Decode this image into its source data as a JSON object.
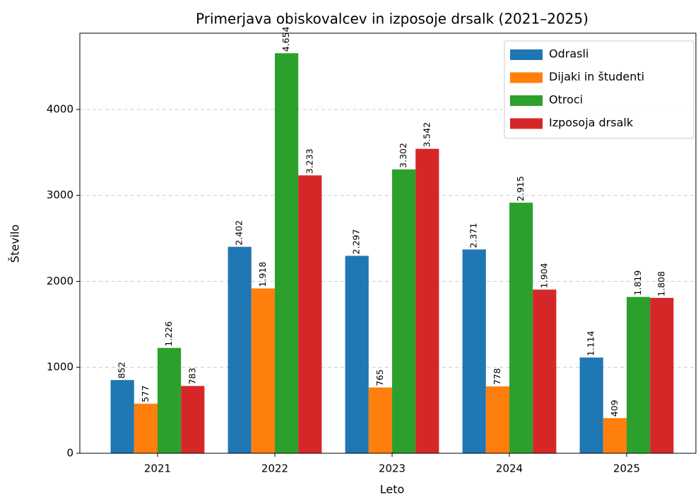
{
  "chart_data": {
    "type": "bar",
    "title": "Primerjava obiskovalcev in izposoje drsalk (2021–2025)",
    "xlabel": "Leto",
    "ylabel": "Število",
    "categories": [
      "2021",
      "2022",
      "2023",
      "2024",
      "2025"
    ],
    "series": [
      {
        "name": "Odrasli",
        "color": "#1f77b4",
        "values": [
          852,
          2402,
          2297,
          2371,
          1114
        ],
        "value_labels": [
          "852",
          "2.402",
          "2.297",
          "2.371",
          "1.114"
        ]
      },
      {
        "name": "Dijaki in študenti",
        "color": "#ff7f0e",
        "values": [
          577,
          1918,
          765,
          778,
          409
        ],
        "value_labels": [
          "577",
          "1.918",
          "765",
          "778",
          "409"
        ]
      },
      {
        "name": "Otroci",
        "color": "#2ca02c",
        "values": [
          1226,
          4654,
          3302,
          2915,
          1819
        ],
        "value_labels": [
          "1.226",
          "4.654",
          "3.302",
          "2.915",
          "1.819"
        ]
      },
      {
        "name": "Izposoja drsalk",
        "color": "#d62728",
        "values": [
          783,
          3233,
          3542,
          1904,
          1808
        ],
        "value_labels": [
          "783",
          "3.233",
          "3.542",
          "1.904",
          "1.808"
        ]
      }
    ],
    "ylim": [
      0,
      4887
    ],
    "yticks": [
      0,
      1000,
      2000,
      3000,
      4000
    ],
    "grid": true,
    "legend": "upper right"
  }
}
